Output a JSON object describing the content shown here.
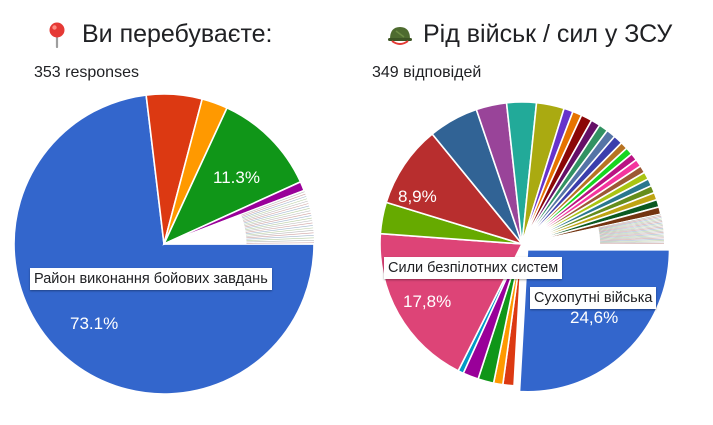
{
  "charts": [
    {
      "title": "Ви перебуваєте:",
      "title_icon": "round-pushpin-icon",
      "responses": "353 responses",
      "callout": "Район виконання бойових завдань",
      "labels": {
        "big": "73.1%",
        "mid": "11.3%"
      }
    },
    {
      "title": "Рід військ / сил у ЗСУ",
      "title_icon": "military-helmet-icon",
      "responses": "349 відповідей",
      "callout_top": "Сили безпілотних систем",
      "callout_bottom": "Сухопутні війська",
      "labels": {
        "a": "8,9%",
        "b": "17,8%",
        "c": "24,6%"
      }
    }
  ],
  "chart_data": [
    {
      "type": "pie",
      "title": "Ви перебуваєте:",
      "total_responses": 353,
      "slices": [
        {
          "label": "Район виконання бойових завдань",
          "value": 73.1,
          "color": "#3366cc"
        },
        {
          "label": "",
          "value": 6.0,
          "color": "#dc3912"
        },
        {
          "label": "",
          "value": 2.8,
          "color": "#ff9900"
        },
        {
          "label": "",
          "value": 11.3,
          "color": "#109618"
        },
        {
          "label": "",
          "value": 1.0,
          "color": "#990099"
        },
        {
          "label": "",
          "value": 5.8,
          "color": "#ffffff",
          "striped": true
        }
      ]
    },
    {
      "type": "pie",
      "title": "Рід військ / сил у ЗСУ",
      "total_responses": 349,
      "slices": [
        {
          "label": "Сухопутні війська",
          "value": 24.6,
          "color": "#3366cc"
        },
        {
          "label": "",
          "value": 1.2,
          "color": "#dc3912"
        },
        {
          "label": "",
          "value": 1.0,
          "color": "#ff9900"
        },
        {
          "label": "",
          "value": 1.7,
          "color": "#109618"
        },
        {
          "label": "",
          "value": 1.7,
          "color": "#990099"
        },
        {
          "label": "",
          "value": 0.6,
          "color": "#0099c6"
        },
        {
          "label": "Сили безпілотних систем",
          "value": 17.8,
          "color": "#dd4477"
        },
        {
          "label": "",
          "value": 3.4,
          "color": "#66aa00"
        },
        {
          "label": "",
          "value": 8.9,
          "color": "#b82e2e"
        },
        {
          "label": "",
          "value": 5.4,
          "color": "#316395"
        },
        {
          "label": "",
          "value": 3.3,
          "color": "#994499"
        },
        {
          "label": "",
          "value": 3.2,
          "color": "#22aa99"
        },
        {
          "label": "",
          "value": 3.0,
          "color": "#aaaa11"
        },
        {
          "label": "",
          "value": 1.0,
          "color": "#6633cc"
        },
        {
          "label": "",
          "value": 1.0,
          "color": "#e67300"
        },
        {
          "label": "",
          "value": 1.2,
          "color": "#8b0707"
        },
        {
          "label": "",
          "value": 1.0,
          "color": "#651067"
        },
        {
          "label": "",
          "value": 1.0,
          "color": "#329262"
        },
        {
          "label": "",
          "value": 1.0,
          "color": "#5574a6"
        },
        {
          "label": "",
          "value": 1.0,
          "color": "#3b3eac"
        },
        {
          "label": "",
          "value": 0.8,
          "color": "#b77322"
        },
        {
          "label": "",
          "value": 0.8,
          "color": "#16d620"
        },
        {
          "label": "",
          "value": 0.8,
          "color": "#b91383"
        },
        {
          "label": "",
          "value": 0.8,
          "color": "#f4359e"
        },
        {
          "label": "",
          "value": 0.8,
          "color": "#9c5935"
        },
        {
          "label": "",
          "value": 0.8,
          "color": "#a9c413"
        },
        {
          "label": "",
          "value": 0.8,
          "color": "#2a778d"
        },
        {
          "label": "",
          "value": 0.8,
          "color": "#668d1c"
        },
        {
          "label": "",
          "value": 0.8,
          "color": "#bea413"
        },
        {
          "label": "",
          "value": 0.8,
          "color": "#0c5922"
        },
        {
          "label": "",
          "value": 0.8,
          "color": "#743411"
        },
        {
          "label": "",
          "value": 3.2,
          "color": "#ffffff",
          "striped": true
        }
      ]
    }
  ]
}
